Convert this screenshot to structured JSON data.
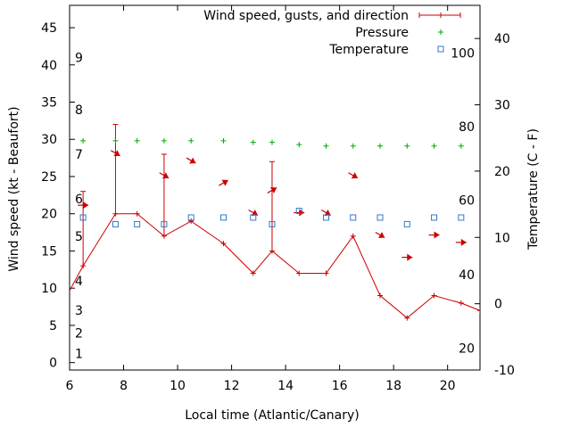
{
  "chart_data": {
    "type": "line",
    "xlabel": "Local time (Atlantic/Canary)",
    "ylabel_left": "Wind speed (kt - Beaufort)",
    "ylabel_right": "Temperature (C - F)",
    "xlim": [
      6,
      21.2
    ],
    "ylim_left": [
      -1,
      48
    ],
    "ylim_right": [
      -10,
      45
    ],
    "x_ticks": [
      6,
      8,
      10,
      12,
      14,
      16,
      18,
      20
    ],
    "y_left_ticks": [
      0,
      5,
      10,
      15,
      20,
      25,
      30,
      35,
      40,
      45
    ],
    "y_right_ticks": [
      -10,
      0,
      10,
      20,
      30,
      40
    ],
    "beaufort_labels": [
      {
        "label": "1",
        "kt": 1.2
      },
      {
        "label": "2",
        "kt": 4
      },
      {
        "label": "3",
        "kt": 7
      },
      {
        "label": "4",
        "kt": 11
      },
      {
        "label": "5",
        "kt": 17
      },
      {
        "label": "6",
        "kt": 22
      },
      {
        "label": "7",
        "kt": 28
      },
      {
        "label": "8",
        "kt": 34
      },
      {
        "label": "9",
        "kt": 41
      }
    ],
    "fahrenheit_labels": [
      {
        "label": "20",
        "celsius": -6.7
      },
      {
        "label": "40",
        "celsius": 4.4
      },
      {
        "label": "60",
        "celsius": 15.6
      },
      {
        "label": "80",
        "celsius": 26.7
      },
      {
        "label": "100",
        "celsius": 37.8
      }
    ],
    "legend": {
      "position": "top-right",
      "entries": [
        "Wind speed, gusts, and direction",
        "Pressure",
        "Temperature"
      ]
    },
    "series": [
      {
        "name": "Wind speed, gusts, and direction",
        "color": "#cc0000",
        "x": [
          5.9,
          6.5,
          7.7,
          8.5,
          9.5,
          10.5,
          11.7,
          12.8,
          13.5,
          14.5,
          15.5,
          16.5,
          17.5,
          18.5,
          19.5,
          20.5,
          21.2
        ],
        "values": [
          9,
          13,
          20,
          20,
          17,
          19,
          16,
          12,
          15,
          12,
          12,
          17,
          9,
          6,
          9,
          8,
          7
        ],
        "gusts": [
          null,
          23,
          32,
          null,
          28,
          null,
          null,
          null,
          27,
          null,
          null,
          null,
          null,
          null,
          null,
          null,
          null
        ],
        "direction_deg": [
          null,
          270,
          300,
          null,
          300,
          300,
          240,
          300,
          240,
          270,
          300,
          300,
          300,
          270,
          270,
          270,
          null
        ]
      },
      {
        "name": "Pressure",
        "color": "#00aa00",
        "x": [
          6.5,
          7.7,
          8.5,
          9.5,
          10.5,
          11.7,
          12.8,
          13.5,
          14.5,
          15.5,
          16.5,
          17.5,
          18.5,
          19.5,
          20.5
        ],
        "values": [
          29.8,
          29.8,
          29.8,
          29.8,
          29.8,
          29.8,
          29.6,
          29.6,
          29.3,
          29.1,
          29.1,
          29.1,
          29.1,
          29.1,
          29.1
        ]
      },
      {
        "name": "Temperature",
        "color": "#3377cc",
        "x": [
          6.5,
          7.7,
          8.5,
          9.5,
          10.5,
          11.7,
          12.8,
          13.5,
          14.5,
          15.5,
          16.5,
          17.5,
          18.5,
          19.5,
          20.5
        ],
        "values": [
          13,
          12,
          12,
          12,
          13,
          13,
          13,
          12,
          14,
          13,
          13,
          13,
          12,
          13,
          13
        ]
      }
    ]
  }
}
